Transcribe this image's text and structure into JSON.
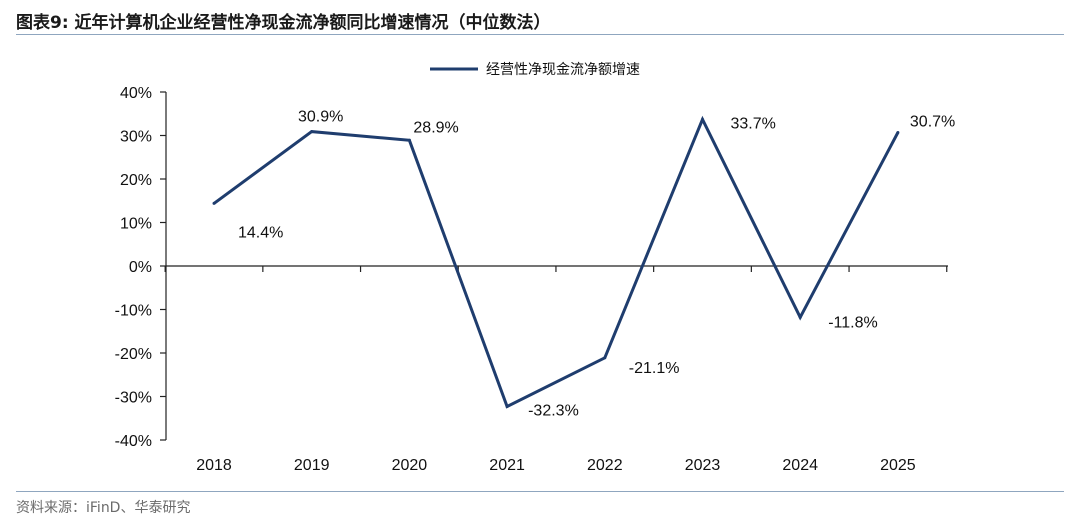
{
  "header": {
    "title": "图表9:   近年计算机企业经营性净现金流净额同比增速情况（中位数法）"
  },
  "footer": {
    "source": "资料来源：iFinD、华泰研究"
  },
  "chart_data": {
    "type": "line",
    "title": "",
    "xlabel": "",
    "ylabel": "",
    "categories": [
      "2018",
      "2019",
      "2020",
      "2021",
      "2022",
      "2023",
      "2024",
      "2025"
    ],
    "series": [
      {
        "name": "经营性净现金流净额增速",
        "values": [
          14.4,
          30.9,
          28.9,
          -32.3,
          -21.1,
          33.7,
          -11.8,
          30.7
        ],
        "labels": [
          "14.4%",
          "30.9%",
          "28.9%",
          "-32.3%",
          "-21.1%",
          "33.7%",
          "-11.8%",
          "30.7%"
        ],
        "color": "#1f3d6e"
      }
    ],
    "ylim": [
      -40,
      40
    ],
    "yticks": [
      "-40%",
      "-30%",
      "-20%",
      "-10%",
      "0%",
      "10%",
      "20%",
      "30%",
      "40%"
    ],
    "grid": false,
    "legend": "top-center"
  }
}
